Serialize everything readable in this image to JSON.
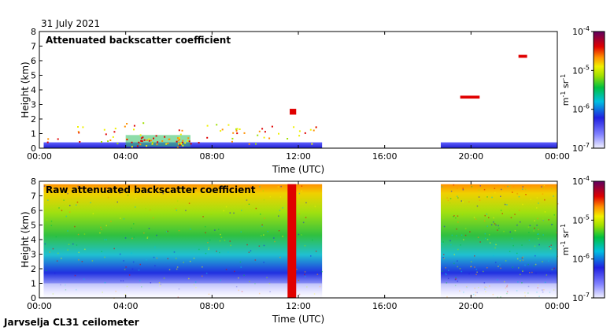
{
  "header": {
    "date": "31 July 2021"
  },
  "footer": {
    "site_label": "Jarvselja CL31 ceilometer"
  },
  "chart_data": [
    {
      "type": "heatmap",
      "id": "panel-attenuated",
      "title": "Attenuated backscatter coefficient",
      "xlabel": "Time (UTC)",
      "ylabel": "Height (km)",
      "xlim_hours": [
        0,
        24
      ],
      "ylim_km": [
        0,
        8
      ],
      "x_ticks": [
        "00:00",
        "04:00",
        "08:00",
        "12:00",
        "16:00",
        "20:00",
        "00:00"
      ],
      "y_ticks": [
        "0",
        "1",
        "2",
        "3",
        "4",
        "5",
        "6",
        "7",
        "8"
      ],
      "data_gaps_hours": [
        [
          13.1,
          18.6
        ]
      ],
      "colorbar": {
        "unit_main": "m",
        "unit_sup1": "-1",
        "unit_mid": " sr",
        "unit_sup2": "-1",
        "scale": "log",
        "tick_base": "10",
        "tick_exps": [
          "-7",
          "-6",
          "-5",
          "-4"
        ],
        "range": [
          1e-07,
          0.0001
        ]
      },
      "features": [
        {
          "name": "boundary-layer",
          "t_start": 0.2,
          "t_end": 13.1,
          "top_km": 0.4,
          "level": "low"
        },
        {
          "name": "boundary-layer",
          "t_start": 18.6,
          "t_end": 24.0,
          "top_km": 0.4,
          "level": "low"
        },
        {
          "name": "aerosol-layer",
          "t_start": 4.0,
          "t_end": 7.0,
          "bottom_km": 0.1,
          "top_km": 0.9,
          "level": "high"
        },
        {
          "name": "cloud",
          "t_start": 11.6,
          "t_end": 11.9,
          "bottom_km": 2.3,
          "top_km": 2.7,
          "level": "very-high"
        },
        {
          "name": "cloud",
          "t_start": 19.5,
          "t_end": 20.4,
          "bottom_km": 3.4,
          "top_km": 3.6,
          "level": "very-high"
        },
        {
          "name": "cloud",
          "t_start": 22.2,
          "t_end": 22.6,
          "bottom_km": 6.2,
          "top_km": 6.4,
          "level": "very-high"
        }
      ]
    },
    {
      "type": "heatmap",
      "id": "panel-raw",
      "title": "Raw attenuated backscatter coefficient",
      "xlabel": "Time (UTC)",
      "ylabel": "Height (km)",
      "xlim_hours": [
        0,
        24
      ],
      "ylim_km": [
        0,
        8
      ],
      "x_ticks": [
        "00:00",
        "04:00",
        "08:00",
        "12:00",
        "16:00",
        "20:00",
        "00:00"
      ],
      "y_ticks": [
        "0",
        "1",
        "2",
        "3",
        "4",
        "5",
        "6",
        "7",
        "8"
      ],
      "data_gaps_hours": [
        [
          13.1,
          18.6
        ]
      ],
      "colorbar": {
        "unit_main": "m",
        "unit_sup1": "-1",
        "unit_mid": " sr",
        "unit_sup2": "-1",
        "scale": "log",
        "tick_base": "10",
        "tick_exps": [
          "-7",
          "-6",
          "-5",
          "-4"
        ],
        "range": [
          1e-07,
          0.0001
        ]
      },
      "features": [
        {
          "name": "noise-field",
          "t_start": 0.2,
          "t_end": 13.1,
          "bottom_km": 0.0,
          "top_km": 7.8,
          "level": "gradient"
        },
        {
          "name": "noise-field",
          "t_start": 18.6,
          "t_end": 24.0,
          "bottom_km": 0.0,
          "top_km": 7.8,
          "level": "gradient"
        },
        {
          "name": "precip-column",
          "t_start": 11.5,
          "t_end": 11.9,
          "bottom_km": 0.0,
          "top_km": 7.8,
          "level": "very-high"
        }
      ]
    }
  ]
}
